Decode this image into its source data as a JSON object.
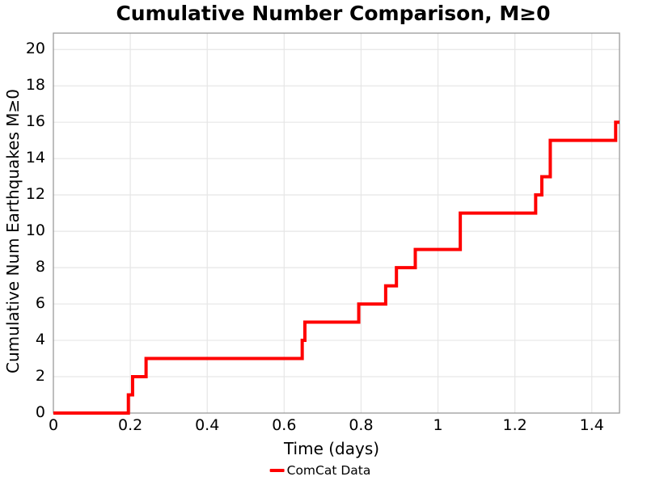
{
  "chart_data": {
    "type": "line",
    "subtype": "step-post",
    "title": "Cumulative Number Comparison, M≥0",
    "xlabel": "Time (days)",
    "ylabel": "Cumulative Num Earthquakes M≥0",
    "xlim": [
      0,
      1.472
    ],
    "ylim": [
      0,
      20.9
    ],
    "xticks": [
      0,
      0.2,
      0.4,
      0.6,
      0.8,
      1,
      1.2,
      1.4
    ],
    "xtick_labels": [
      "0",
      "0.2",
      "0.4",
      "0.6",
      "0.8",
      "1",
      "1.2",
      "1.4"
    ],
    "yticks": [
      0,
      2,
      4,
      6,
      8,
      10,
      12,
      14,
      16,
      18,
      20
    ],
    "ytick_labels": [
      "0",
      "2",
      "4",
      "6",
      "8",
      "10",
      "12",
      "14",
      "16",
      "18",
      "20"
    ],
    "grid": true,
    "grid_color": "#e6e6e6",
    "spine_color": "#9a9a9a",
    "background_color": "#ffffff",
    "legend_position": "bottom-center",
    "series": [
      {
        "name": "ComCat Data",
        "color": "#ff0000",
        "line_width": 4,
        "start": [
          0,
          0
        ],
        "steps": [
          [
            0.195,
            1
          ],
          [
            0.206,
            2
          ],
          [
            0.241,
            3
          ],
          [
            0.647,
            4
          ],
          [
            0.654,
            5
          ],
          [
            0.794,
            6
          ],
          [
            0.864,
            7
          ],
          [
            0.892,
            8
          ],
          [
            0.941,
            9
          ],
          [
            1.058,
            11
          ],
          [
            1.254,
            12
          ],
          [
            1.27,
            13
          ],
          [
            1.292,
            15
          ],
          [
            1.462,
            16
          ]
        ],
        "end_x": 1.472
      }
    ]
  }
}
